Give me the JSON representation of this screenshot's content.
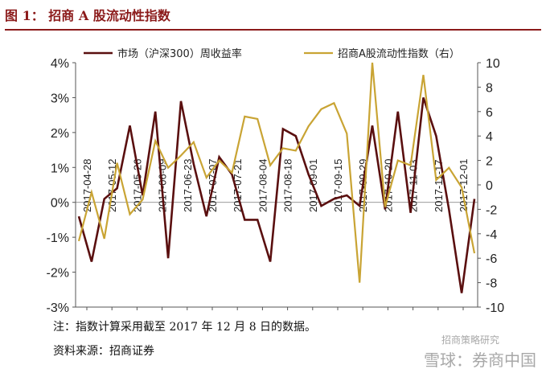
{
  "figure_title": "图 1： 招商 A 股流动性指数",
  "notes": {
    "line1": "注：指数计算采用截至 2017 年 12 月 8 日的数据。",
    "line2": "资料来源：招商证券"
  },
  "watermark": {
    "line1": "招商策略研究",
    "line2": "雪球：券商中国"
  },
  "chart_data": {
    "type": "line",
    "title": "",
    "xlabel": "",
    "ylabel": "",
    "x_tick_labels": [
      "2017-04-28",
      "2017-05-12",
      "2017-05-26",
      "2017-06-09",
      "2017-06-23",
      "2017-07-07",
      "2017-07-21",
      "2017-08-04",
      "2017-08-18",
      "2017-09-01",
      "2017-09-15",
      "2017-09-29",
      "2017-10-20",
      "2017-11-03",
      "2017-11-17",
      "2017-12-01"
    ],
    "y_left": {
      "lim": [
        -3,
        4
      ],
      "ticks": [
        "-3%",
        "-2%",
        "-1%",
        "0%",
        "1%",
        "2%",
        "3%",
        "4%"
      ]
    },
    "y_right": {
      "lim": [
        -10,
        10
      ],
      "ticks": [
        "-10",
        "-8",
        "-6",
        "-4",
        "-2",
        "0",
        "2",
        "4",
        "6",
        "8",
        "10"
      ]
    },
    "grid": false,
    "legend_position": "top",
    "series": [
      {
        "name": "市场（沪深300）周收益率",
        "axis": "left",
        "color": "#5a0f0f",
        "values": [
          -0.4,
          -1.7,
          0.1,
          0.4,
          2.2,
          0.2,
          2.6,
          -1.6,
          2.9,
          1.1,
          -0.4,
          1.3,
          0.8,
          -0.5,
          -0.5,
          -1.7,
          2.1,
          1.9,
          0.8,
          -0.1,
          0.1,
          0.2,
          -0.1,
          2.2,
          -0.2,
          2.6,
          -0.3,
          3.0,
          1.9,
          -0.2,
          -2.6,
          0.1
        ]
      },
      {
        "name": "招商A股流动性指数（右）",
        "axis": "right",
        "color": "#c9a434",
        "values": [
          -4.6,
          -0.6,
          -4.4,
          1.8,
          -2.4,
          -1.2,
          3.6,
          1.4,
          2.4,
          3.5,
          0.6,
          2.0,
          1.0,
          5.6,
          5.4,
          1.6,
          3.0,
          2.8,
          4.8,
          6.2,
          6.7,
          4.2,
          -8.0,
          10.0,
          -1.8,
          2.0,
          1.6,
          9.0,
          0.4,
          1.4,
          -0.2,
          -5.6
        ]
      }
    ]
  }
}
